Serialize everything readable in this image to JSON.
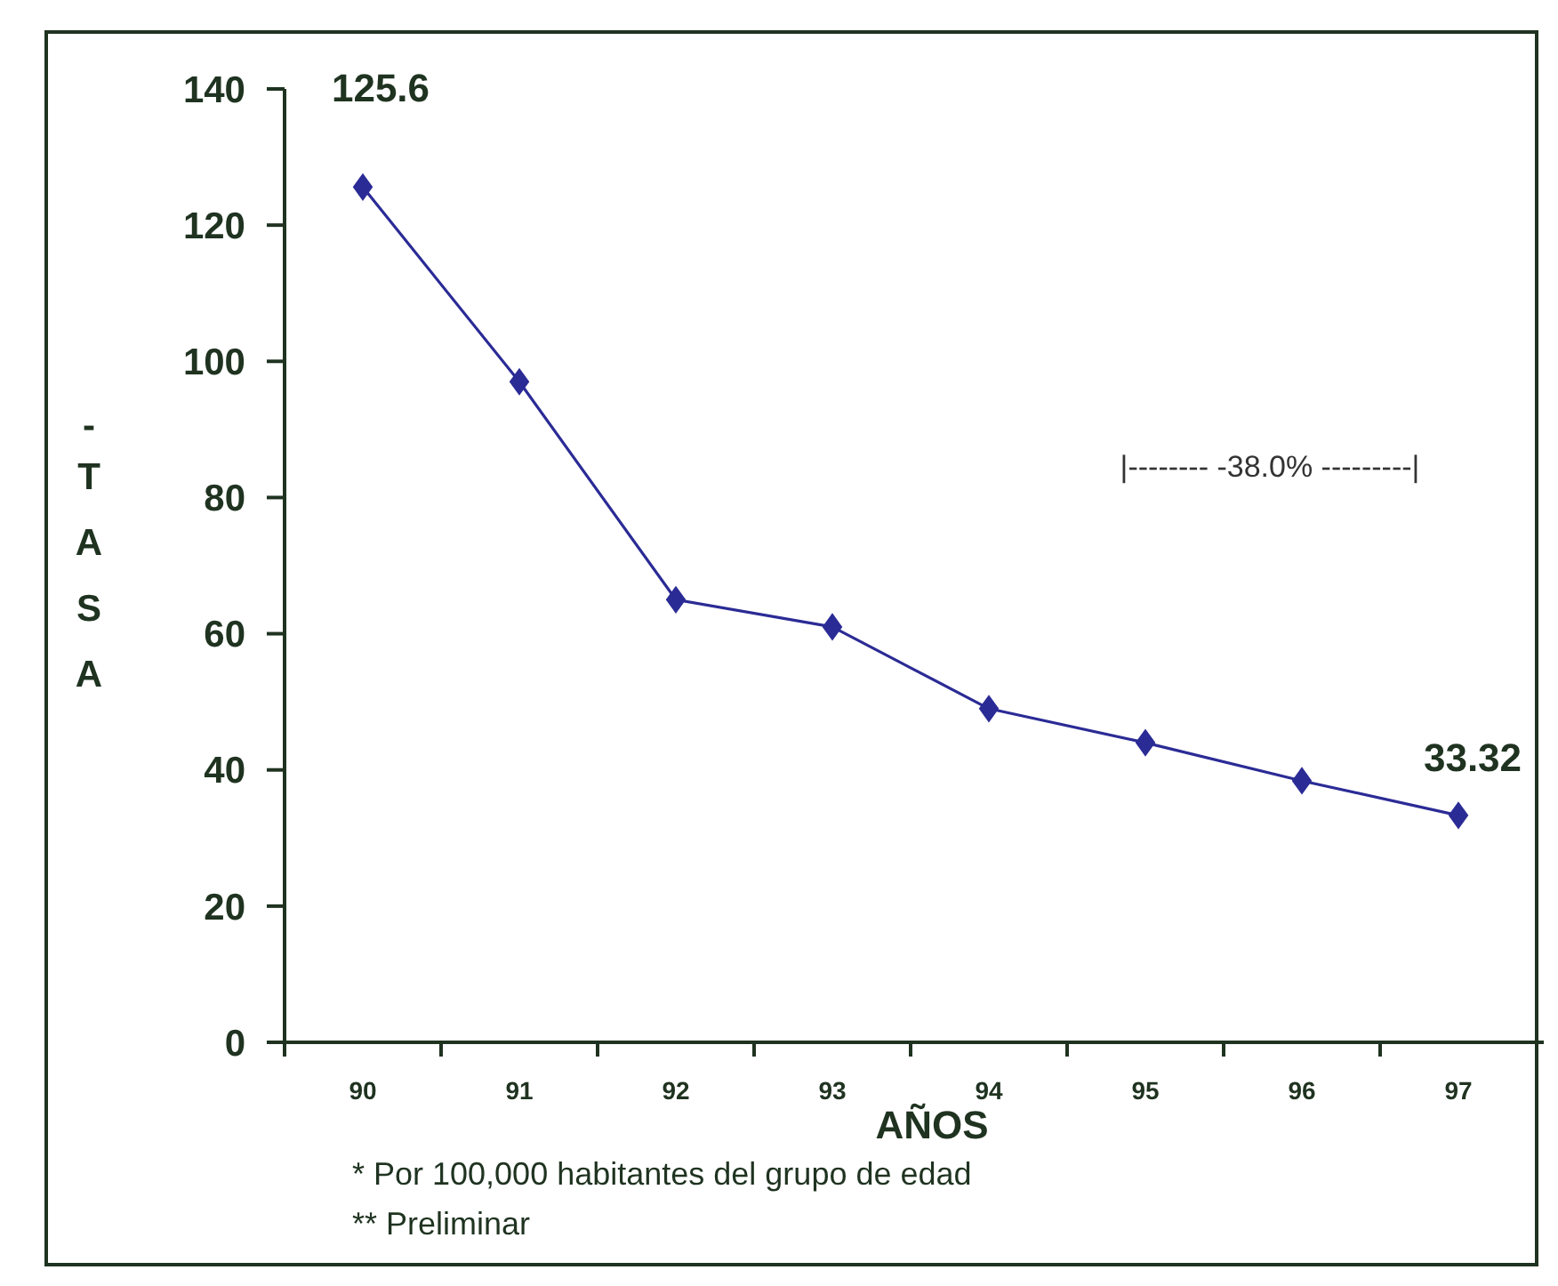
{
  "chart_data": {
    "type": "line",
    "xlabel": "AÑOS",
    "ylabel": "-TASA",
    "categories": [
      "90",
      "91",
      "92",
      "93",
      "94",
      "95",
      "96",
      "97"
    ],
    "series": [
      {
        "color": "#2b2b96",
        "values": [
          125.6,
          97,
          65,
          61,
          49,
          44,
          38.4,
          33.32
        ],
        "value_labels": [
          "125.6",
          null,
          null,
          null,
          null,
          null,
          null,
          "33.32"
        ]
      }
    ],
    "ylim": [
      0,
      140
    ],
    "yticks": [
      0,
      20,
      40,
      60,
      80,
      100,
      120,
      140
    ],
    "marker": "diamond",
    "line_style": "solid",
    "grid": false,
    "annotations": [
      "|-------- -38.0% ---------|",
      "* Por 100,000 habitantes del grupo de edad",
      "** Preliminar"
    ]
  }
}
